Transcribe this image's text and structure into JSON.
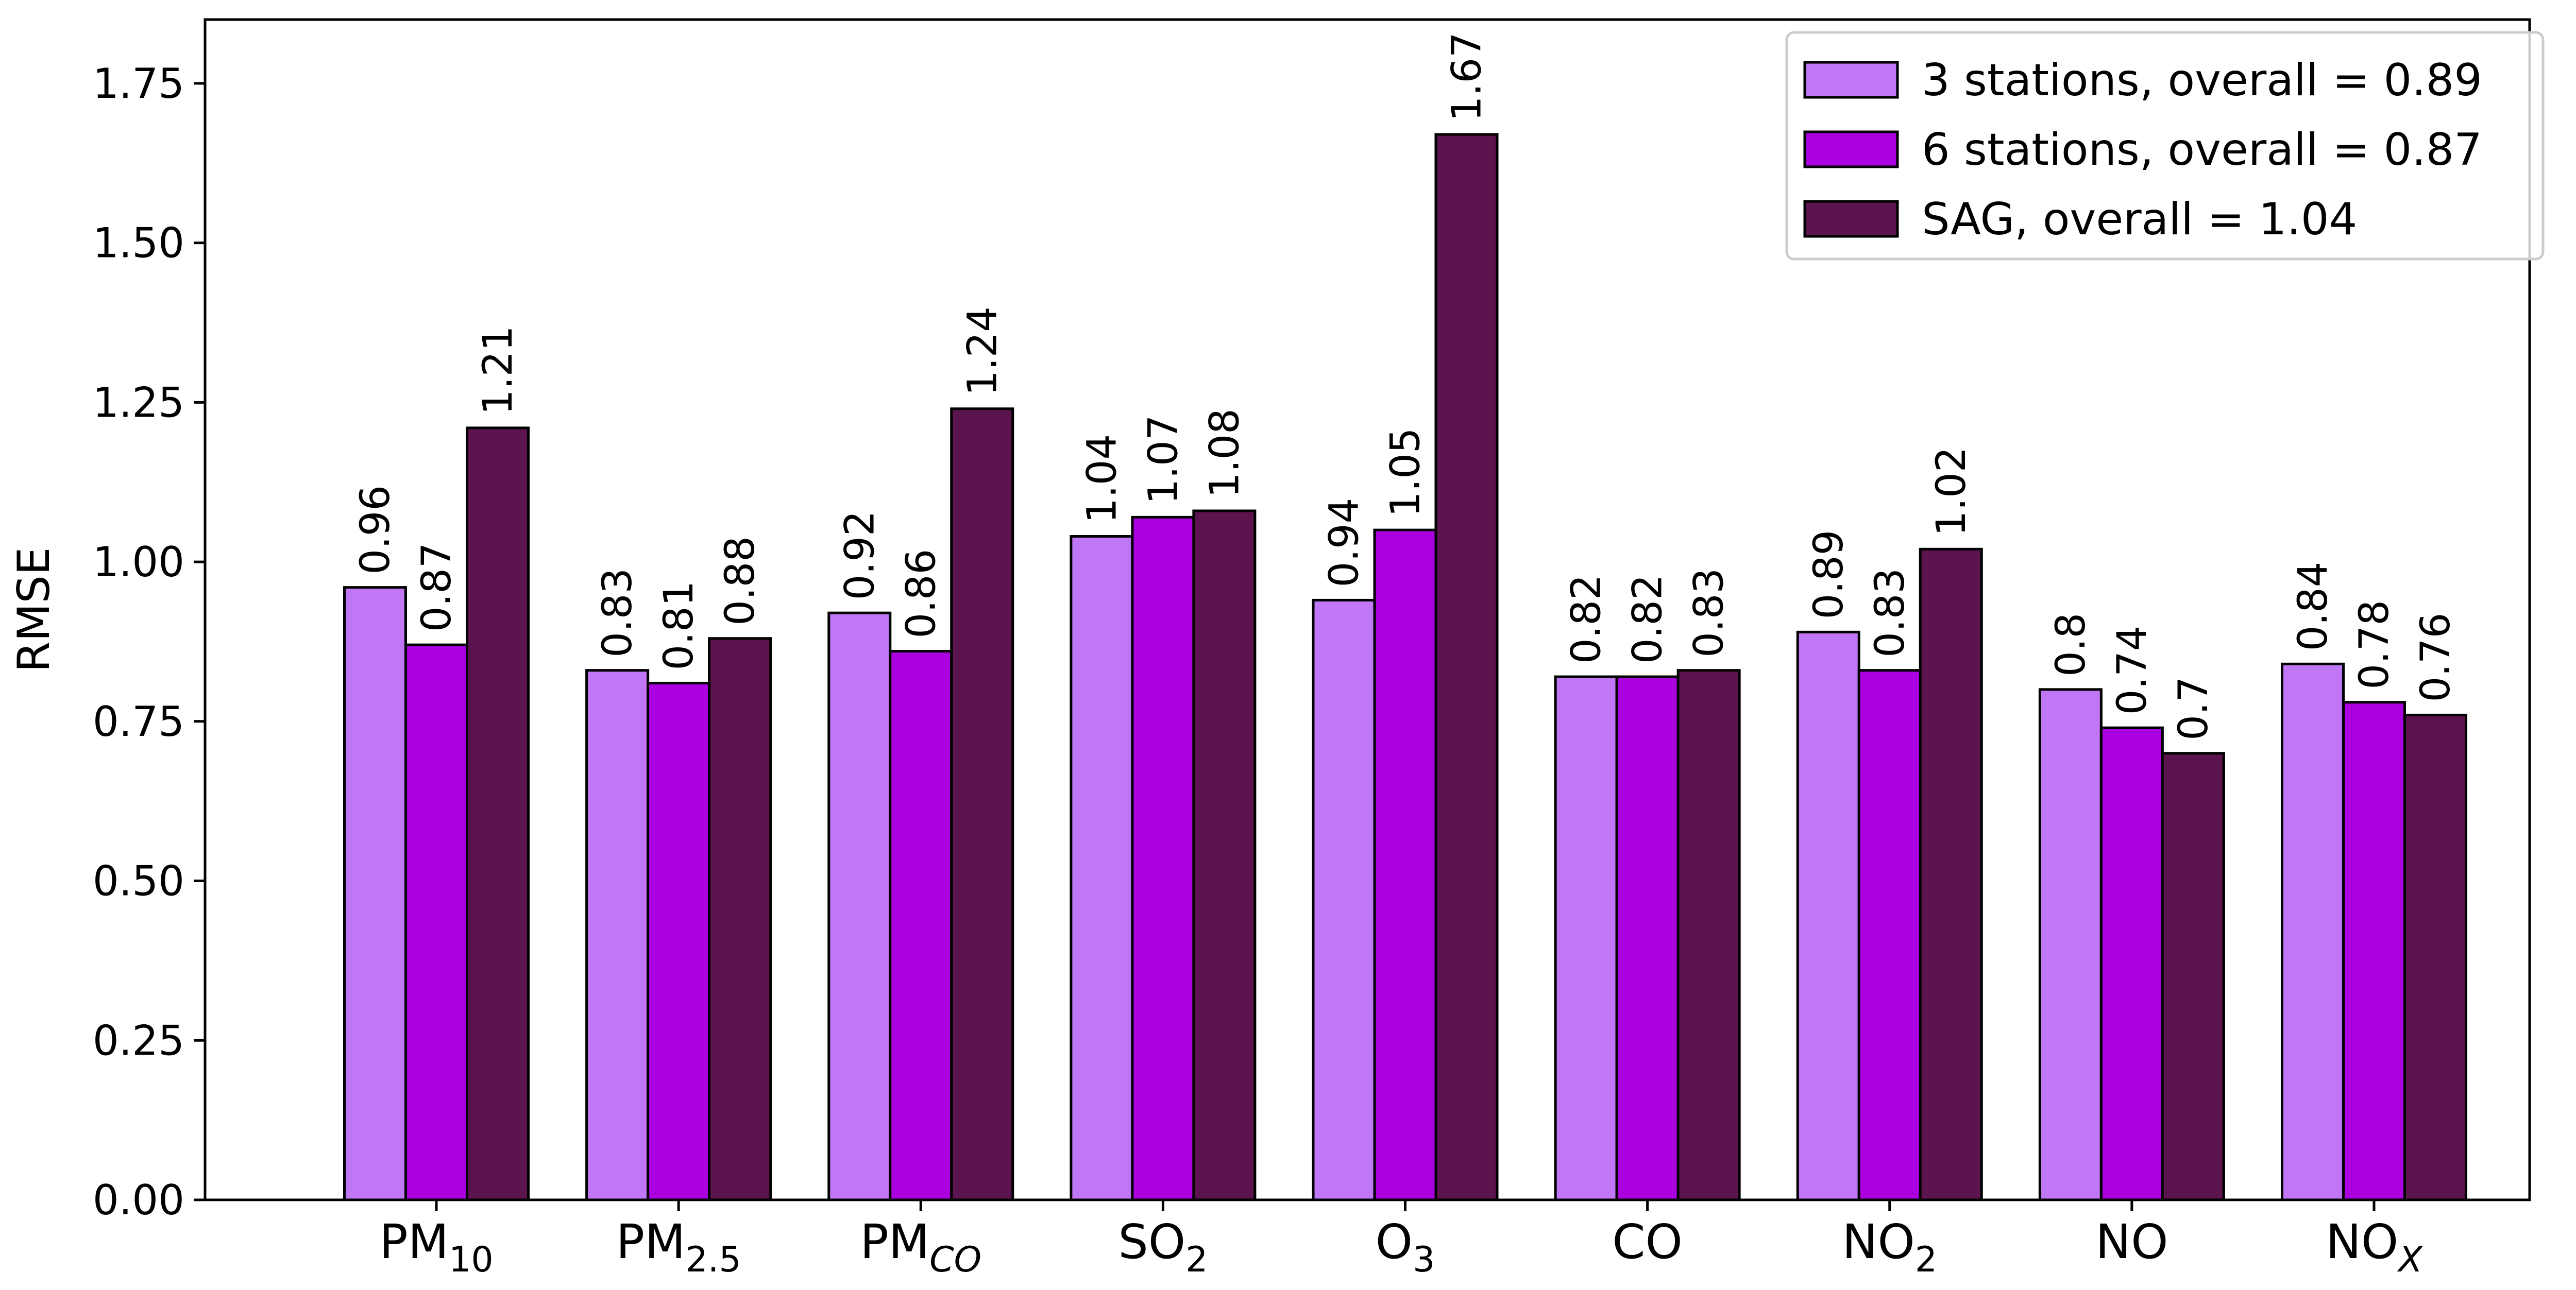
{
  "chart_data": {
    "type": "bar",
    "title": "",
    "xlabel": "",
    "ylabel": "RMSE",
    "ylim": [
      0,
      1.85
    ],
    "yticks": [
      "0.00",
      "0.25",
      "0.50",
      "0.75",
      "1.00",
      "1.25",
      "1.50",
      "1.75"
    ],
    "grid": false,
    "legend_position": "top-right",
    "categories": [
      {
        "base": "PM",
        "sub": "10",
        "sub_italic": false
      },
      {
        "base": "PM",
        "sub": "2.5",
        "sub_italic": false
      },
      {
        "base": "PM",
        "sub": "CO",
        "sub_italic": true
      },
      {
        "base": "SO",
        "sub": "2",
        "sub_italic": false
      },
      {
        "base": "O",
        "sub": "3",
        "sub_italic": false
      },
      {
        "base": "CO",
        "sub": "",
        "sub_italic": false
      },
      {
        "base": "NO",
        "sub": "2",
        "sub_italic": false
      },
      {
        "base": "NO",
        "sub": "",
        "sub_italic": false
      },
      {
        "base": "NO",
        "sub": "X",
        "sub_italic": true
      }
    ],
    "series": [
      {
        "name": "3 stations, overall = 0.89",
        "color": "#bf77f6",
        "values": [
          0.96,
          0.83,
          0.92,
          1.04,
          0.94,
          0.82,
          0.89,
          0.8,
          0.84
        ],
        "labels": [
          "0.96",
          "0.83",
          "0.92",
          "1.04",
          "0.94",
          "0.82",
          "0.89",
          "0.8",
          "0.84"
        ]
      },
      {
        "name": "6 stations, overall = 0.87",
        "color": "#aa00e0",
        "values": [
          0.87,
          0.81,
          0.86,
          1.07,
          1.05,
          0.82,
          0.83,
          0.74,
          0.78
        ],
        "labels": [
          "0.87",
          "0.81",
          "0.86",
          "1.07",
          "1.05",
          "0.82",
          "0.83",
          "0.74",
          "0.78"
        ]
      },
      {
        "name": "SAG, overall = 1.04",
        "color": "#5c144f",
        "values": [
          1.21,
          0.88,
          1.24,
          1.08,
          1.67,
          0.83,
          1.02,
          0.7,
          0.76
        ],
        "labels": [
          "1.21",
          "0.88",
          "1.24",
          "1.08",
          "1.67",
          "0.83",
          "1.02",
          "0.7",
          "0.76"
        ]
      }
    ]
  }
}
